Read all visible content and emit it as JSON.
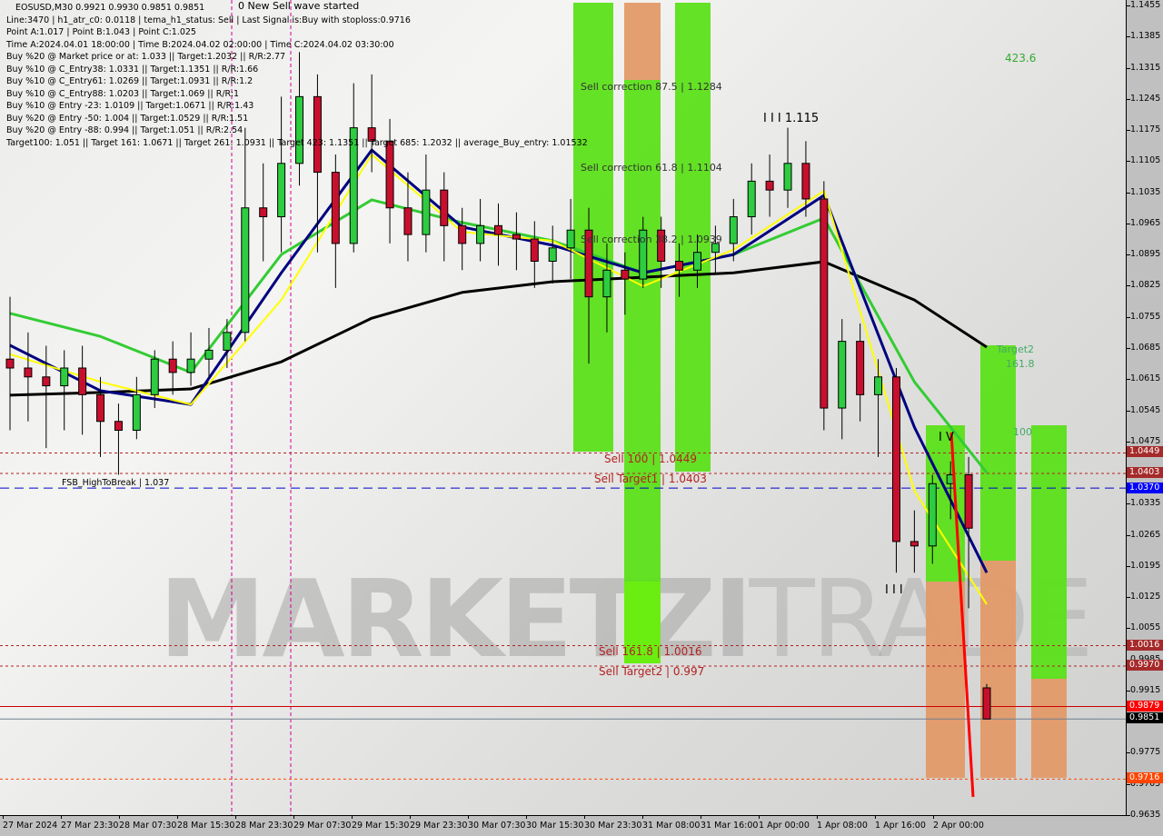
{
  "header": {
    "symbol_line": "EOSUSD,M30  0.9921 0.9930 0.9851 0.9851",
    "lines": [
      "Line:3470 | h1_atr_c0: 0.0118 | tema_h1_status: Sell | Last Signal is:Buy with stoploss:0.9716",
      "Point A:1.017 | Point B:1.043 | Point C:1.025",
      "Time A:2024.04.01 18:00:00 | Time B:2024.04.02 02:00:00 | Time C:2024.04.02 03:30:00",
      "Buy %20 @ Market price or at: 1.033 || Target:1.2032 || R/R:2.77",
      "Buy %10 @ C_Entry38: 1.0331 || Target:1.1351 || R/R:1.66",
      "Buy %10 @ C_Entry61: 1.0269 || Target:1.0931 || R/R:1.2",
      "Buy %10 @ C_Entry88: 1.0203 || Target:1.069 || R/R:1",
      "Buy %10 @ Entry -23: 1.0109 || Target:1.0671 || R/R:1.43",
      "Buy %20 @ Entry -50: 1.004 || Target:1.0529 || R/R:1.51",
      "Buy %20 @ Entry -88: 0.994 || Target:1.051 || R/R:2.54",
      "Target100: 1.051 || Target 161: 1.0671 || Target 261: 1.0931 || Target 423: 1.1351 || Target 685: 1.2032 || average_Buy_entry: 1.01532"
    ]
  },
  "annotations": {
    "wave": "0 New Sell wave started",
    "corr875": "Sell correction 87.5 | 1.1284",
    "corr618": "Sell correction 61.8 | 1.1104",
    "corr382": "Sell correction 38.2 | 1.0939",
    "wave3": "I I I 1.115",
    "wave3b": "I I I",
    "wave4": "I V",
    "t4236": "423.6",
    "target2": "Target2",
    "t1618": "161.8",
    "t100": "100",
    "fsb": "FSB_HighToBreak | 1.037",
    "sell100": "Sell 100 | 1.0449",
    "target1": "Sell Target1 | 1.0403",
    "sell1618": "Sell 161.8 | 1.0016",
    "target2sell": "Sell Target2 | 0.997"
  },
  "watermark": "MARKETZITRADE",
  "price_tags": {
    "sell100": {
      "value": "1.0449",
      "bg": "#a52a2a",
      "fg": "#ffffff"
    },
    "target1": {
      "value": "1.0403",
      "bg": "#a52a2a",
      "fg": "#ffffff"
    },
    "fsb": {
      "value": "1.0370",
      "bg": "#0000ff",
      "fg": "#ffffff"
    },
    "sell1618": {
      "value": "1.0016",
      "bg": "#a52a2a",
      "fg": "#ffffff"
    },
    "target2": {
      "value": "0.9970",
      "bg": "#a52a2a",
      "fg": "#ffffff"
    },
    "high": {
      "value": "0.9879",
      "bg": "#ff0000",
      "fg": "#ffffff"
    },
    "bid": {
      "value": "0.9851",
      "bg": "#000000",
      "fg": "#ffffff"
    },
    "stop": {
      "value": "0.9716",
      "bg": "#ff4500",
      "fg": "#ffffff"
    }
  },
  "chart_data": {
    "type": "candlestick",
    "title": "EOSUSD,M30",
    "ylim": [
      0.9635,
      1.1455
    ],
    "y_ticks": [
      "1.1455",
      "1.1385",
      "1.1315",
      "1.1245",
      "1.1175",
      "1.1105",
      "1.1035",
      "1.0965",
      "1.0895",
      "1.0825",
      "1.0755",
      "1.0685",
      "1.0615",
      "1.0545",
      "1.0475",
      "1.0405",
      "1.0335",
      "1.0265",
      "1.0195",
      "1.0125",
      "1.0055",
      "0.9985",
      "0.9915",
      "0.9845",
      "0.9775",
      "0.9705",
      "0.9635"
    ],
    "x_ticks": [
      "27 Mar 2024",
      "27 Mar 23:30",
      "28 Mar 07:30",
      "28 Mar 15:30",
      "28 Mar 23:30",
      "29 Mar 07:30",
      "29 Mar 15:30",
      "29 Mar 23:30",
      "30 Mar 07:30",
      "30 Mar 15:30",
      "30 Mar 23:30",
      "31 Mar 08:00",
      "31 Mar 16:00",
      "1 Apr 00:00",
      "1 Apr 08:00",
      "1 Apr 16:00",
      "2 Apr 00:00"
    ],
    "candles": [
      [
        1.066,
        1.08,
        1.05,
        1.064
      ],
      [
        1.064,
        1.072,
        1.052,
        1.062
      ],
      [
        1.062,
        1.069,
        1.046,
        1.06
      ],
      [
        1.06,
        1.068,
        1.05,
        1.064
      ],
      [
        1.064,
        1.069,
        1.049,
        1.058
      ],
      [
        1.058,
        1.062,
        1.044,
        1.052
      ],
      [
        1.052,
        1.056,
        1.04,
        1.05
      ],
      [
        1.05,
        1.062,
        1.048,
        1.058
      ],
      [
        1.058,
        1.068,
        1.055,
        1.066
      ],
      [
        1.066,
        1.07,
        1.058,
        1.063
      ],
      [
        1.063,
        1.072,
        1.06,
        1.066
      ],
      [
        1.066,
        1.073,
        1.062,
        1.068
      ],
      [
        1.068,
        1.075,
        1.064,
        1.072
      ],
      [
        1.072,
        1.118,
        1.07,
        1.1
      ],
      [
        1.1,
        1.11,
        1.088,
        1.098
      ],
      [
        1.098,
        1.125,
        1.09,
        1.11
      ],
      [
        1.11,
        1.135,
        1.105,
        1.125
      ],
      [
        1.125,
        1.13,
        1.09,
        1.108
      ],
      [
        1.108,
        1.112,
        1.082,
        1.092
      ],
      [
        1.092,
        1.128,
        1.09,
        1.118
      ],
      [
        1.118,
        1.13,
        1.108,
        1.115
      ],
      [
        1.115,
        1.12,
        1.092,
        1.1
      ],
      [
        1.1,
        1.108,
        1.088,
        1.094
      ],
      [
        1.094,
        1.112,
        1.09,
        1.104
      ],
      [
        1.104,
        1.108,
        1.088,
        1.096
      ],
      [
        1.096,
        1.1,
        1.086,
        1.092
      ],
      [
        1.092,
        1.102,
        1.088,
        1.096
      ],
      [
        1.096,
        1.101,
        1.087,
        1.094
      ],
      [
        1.094,
        1.099,
        1.086,
        1.093
      ],
      [
        1.093,
        1.097,
        1.082,
        1.088
      ],
      [
        1.088,
        1.096,
        1.083,
        1.091
      ],
      [
        1.091,
        1.102,
        1.084,
        1.095
      ],
      [
        1.095,
        1.1,
        1.065,
        1.08
      ],
      [
        1.08,
        1.092,
        1.072,
        1.086
      ],
      [
        1.086,
        1.09,
        1.076,
        1.084
      ],
      [
        1.084,
        1.098,
        1.082,
        1.095
      ],
      [
        1.095,
        1.098,
        1.082,
        1.088
      ],
      [
        1.088,
        1.092,
        1.08,
        1.086
      ],
      [
        1.086,
        1.094,
        1.082,
        1.09
      ],
      [
        1.09,
        1.096,
        1.085,
        1.092
      ],
      [
        1.092,
        1.102,
        1.088,
        1.098
      ],
      [
        1.098,
        1.11,
        1.094,
        1.106
      ],
      [
        1.106,
        1.112,
        1.098,
        1.104
      ],
      [
        1.104,
        1.118,
        1.1,
        1.11
      ],
      [
        1.11,
        1.115,
        1.098,
        1.102
      ],
      [
        1.102,
        1.106,
        1.05,
        1.055
      ],
      [
        1.055,
        1.075,
        1.048,
        1.07
      ],
      [
        1.07,
        1.074,
        1.052,
        1.058
      ],
      [
        1.058,
        1.066,
        1.044,
        1.062
      ],
      [
        1.062,
        1.064,
        1.018,
        1.025
      ],
      [
        1.025,
        1.032,
        1.018,
        1.024
      ],
      [
        1.024,
        1.04,
        1.02,
        1.038
      ],
      [
        1.038,
        1.043,
        1.03,
        1.04
      ],
      [
        1.04,
        1.044,
        1.01,
        1.028
      ],
      [
        0.9921,
        0.993,
        0.9851,
        0.9851
      ]
    ],
    "series": [
      {
        "color": "#000000",
        "values": [
          1.0579,
          1.0585,
          1.0593,
          1.0654,
          1.0752,
          1.081,
          1.0834,
          1.0844,
          1.0854,
          1.0879,
          1.0793,
          1.0687
        ]
      },
      {
        "color": "#33cc33",
        "values": [
          1.0763,
          1.0711,
          1.063,
          1.0895,
          1.1018,
          1.0967,
          1.0926,
          1.0854,
          1.0895,
          1.0977,
          1.0609,
          1.0405
        ]
      },
      {
        "color": "#000080",
        "values": [
          1.0691,
          1.0589,
          1.0558,
          1.0854,
          1.113,
          1.0957,
          1.0916,
          1.0854,
          1.0895,
          1.1028,
          1.0507,
          1.018
        ]
      },
      {
        "color": "#ffff00",
        "values": [
          1.0671,
          1.0609,
          1.0558,
          1.0793,
          1.112,
          1.0946,
          1.0926,
          1.0824,
          1.0906,
          1.1038,
          1.0364,
          1.0109
        ]
      }
    ],
    "levels": [
      {
        "price": 1.0449,
        "color": "#b22222",
        "style": "dotted"
      },
      {
        "price": 1.0403,
        "color": "#b22222",
        "style": "dotted"
      },
      {
        "price": 1.037,
        "color": "#0000cd",
        "style": "dashed"
      },
      {
        "price": 1.0016,
        "color": "#b22222",
        "style": "dotted"
      },
      {
        "price": 0.997,
        "color": "#b22222",
        "style": "dotted"
      },
      {
        "price": 0.9879,
        "color": "#cc0000",
        "style": "solid"
      },
      {
        "price": 0.9851,
        "color": "#708090",
        "style": "solid"
      },
      {
        "price": 0.9716,
        "color": "#ff4500",
        "style": "dotted"
      }
    ],
    "grid": false
  }
}
